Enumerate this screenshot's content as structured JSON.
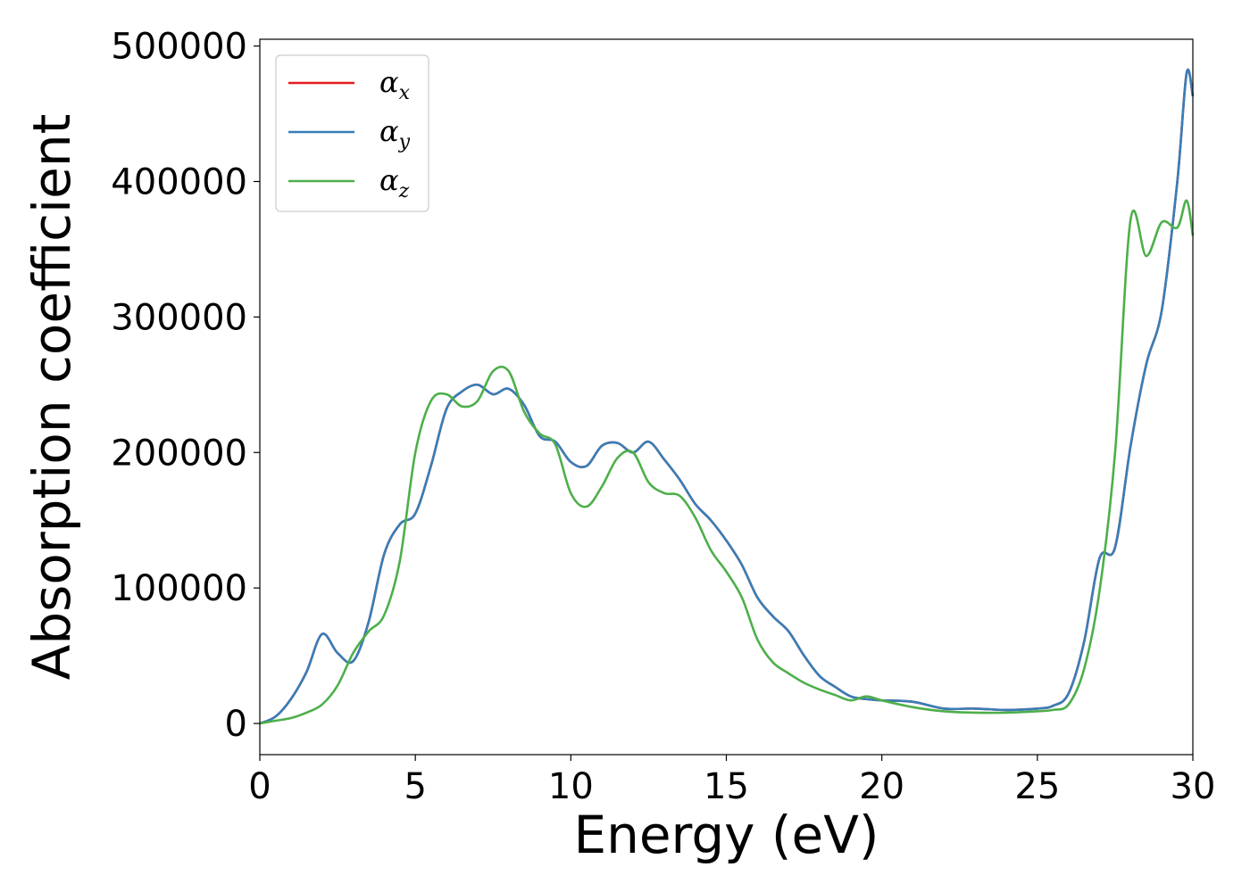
{
  "chart_data": {
    "type": "line",
    "xlabel": "Energy (eV)",
    "ylabel": "Absorption coefficient",
    "xlim": [
      0,
      30
    ],
    "ylim": [
      -23000,
      505000
    ],
    "xticks": [
      0,
      5,
      10,
      15,
      20,
      25,
      30
    ],
    "xtick_labels": [
      "0",
      "5",
      "10",
      "15",
      "20",
      "25",
      "30"
    ],
    "yticks": [
      0,
      100000,
      200000,
      300000,
      400000,
      500000
    ],
    "ytick_labels": [
      "0",
      "100000",
      "200000",
      "300000",
      "400000",
      "500000"
    ],
    "grid": false,
    "legend_position": "top-left",
    "series": [
      {
        "name": "α_x",
        "legend_base": "α",
        "legend_sub": "x",
        "color": "#e41a1c",
        "x": [
          0,
          0.5,
          1,
          1.5,
          2,
          2.5,
          3,
          3.5,
          4,
          4.5,
          5,
          5.5,
          6,
          6.5,
          7,
          7.5,
          8,
          8.5,
          9,
          9.5,
          10,
          10.5,
          11,
          11.5,
          12,
          12.5,
          13,
          13.5,
          14,
          14.5,
          15,
          15.5,
          16,
          16.5,
          17,
          17.5,
          18,
          18.5,
          19,
          19.5,
          20,
          21,
          22,
          23,
          24,
          25,
          25.5,
          26,
          26.5,
          27,
          27.5,
          28,
          28.5,
          29,
          29.5,
          29.8,
          30
        ],
        "y": [
          0,
          5000,
          18000,
          38000,
          66000,
          52000,
          46000,
          75000,
          125000,
          147000,
          155000,
          190000,
          232000,
          245000,
          250000,
          243000,
          247000,
          235000,
          212000,
          208000,
          193000,
          190000,
          205000,
          207000,
          200000,
          208000,
          195000,
          180000,
          162000,
          150000,
          135000,
          117000,
          93000,
          79000,
          68000,
          50000,
          35000,
          27000,
          20000,
          18000,
          17000,
          16000,
          11000,
          11000,
          10000,
          11000,
          13000,
          22000,
          60000,
          122000,
          130000,
          205000,
          265000,
          305000,
          400000,
          480000,
          463000
        ]
      },
      {
        "name": "α_y",
        "legend_base": "α",
        "legend_sub": "y",
        "color": "#377eb8",
        "x": [
          0,
          0.5,
          1,
          1.5,
          2,
          2.5,
          3,
          3.5,
          4,
          4.5,
          5,
          5.5,
          6,
          6.5,
          7,
          7.5,
          8,
          8.5,
          9,
          9.5,
          10,
          10.5,
          11,
          11.5,
          12,
          12.5,
          13,
          13.5,
          14,
          14.5,
          15,
          15.5,
          16,
          16.5,
          17,
          17.5,
          18,
          18.5,
          19,
          19.5,
          20,
          21,
          22,
          23,
          24,
          25,
          25.5,
          26,
          26.5,
          27,
          27.5,
          28,
          28.5,
          29,
          29.5,
          29.8,
          30
        ],
        "y": [
          0,
          5000,
          18000,
          38000,
          66000,
          52000,
          46000,
          75000,
          125000,
          147000,
          155000,
          190000,
          232000,
          245000,
          250000,
          243000,
          247000,
          235000,
          212000,
          208000,
          193000,
          190000,
          205000,
          207000,
          200000,
          208000,
          195000,
          180000,
          162000,
          150000,
          135000,
          117000,
          93000,
          79000,
          68000,
          50000,
          35000,
          27000,
          20000,
          18000,
          17000,
          16000,
          11000,
          11000,
          10000,
          11000,
          13000,
          22000,
          60000,
          122000,
          130000,
          205000,
          265000,
          305000,
          400000,
          480000,
          463000
        ]
      },
      {
        "name": "α_z",
        "legend_base": "α",
        "legend_sub": "z",
        "color": "#4daf4a",
        "x": [
          0,
          0.5,
          1,
          1.5,
          2,
          2.5,
          3,
          3.5,
          4,
          4.5,
          5,
          5.5,
          6,
          6.5,
          7,
          7.5,
          8,
          8.5,
          9,
          9.5,
          10,
          10.5,
          11,
          11.5,
          12,
          12.5,
          13,
          13.5,
          14,
          14.5,
          15,
          15.5,
          16,
          16.5,
          17,
          17.5,
          18,
          18.5,
          19,
          19.5,
          20,
          21,
          22,
          23,
          24,
          25,
          25.5,
          26,
          26.5,
          27,
          27.5,
          28,
          28.5,
          29,
          29.5,
          29.8,
          30
        ],
        "y": [
          0,
          2000,
          4000,
          8000,
          14000,
          28000,
          52000,
          68000,
          80000,
          120000,
          200000,
          238000,
          243000,
          234000,
          238000,
          260000,
          260000,
          230000,
          214000,
          206000,
          170000,
          160000,
          175000,
          196000,
          200000,
          178000,
          170000,
          168000,
          152000,
          128000,
          112000,
          93000,
          62000,
          45000,
          37000,
          30000,
          25000,
          21000,
          17000,
          20000,
          17000,
          12000,
          9000,
          8000,
          8000,
          9000,
          10000,
          14000,
          40000,
          98000,
          200000,
          372000,
          345000,
          370000,
          366000,
          386000,
          360000
        ]
      }
    ]
  }
}
